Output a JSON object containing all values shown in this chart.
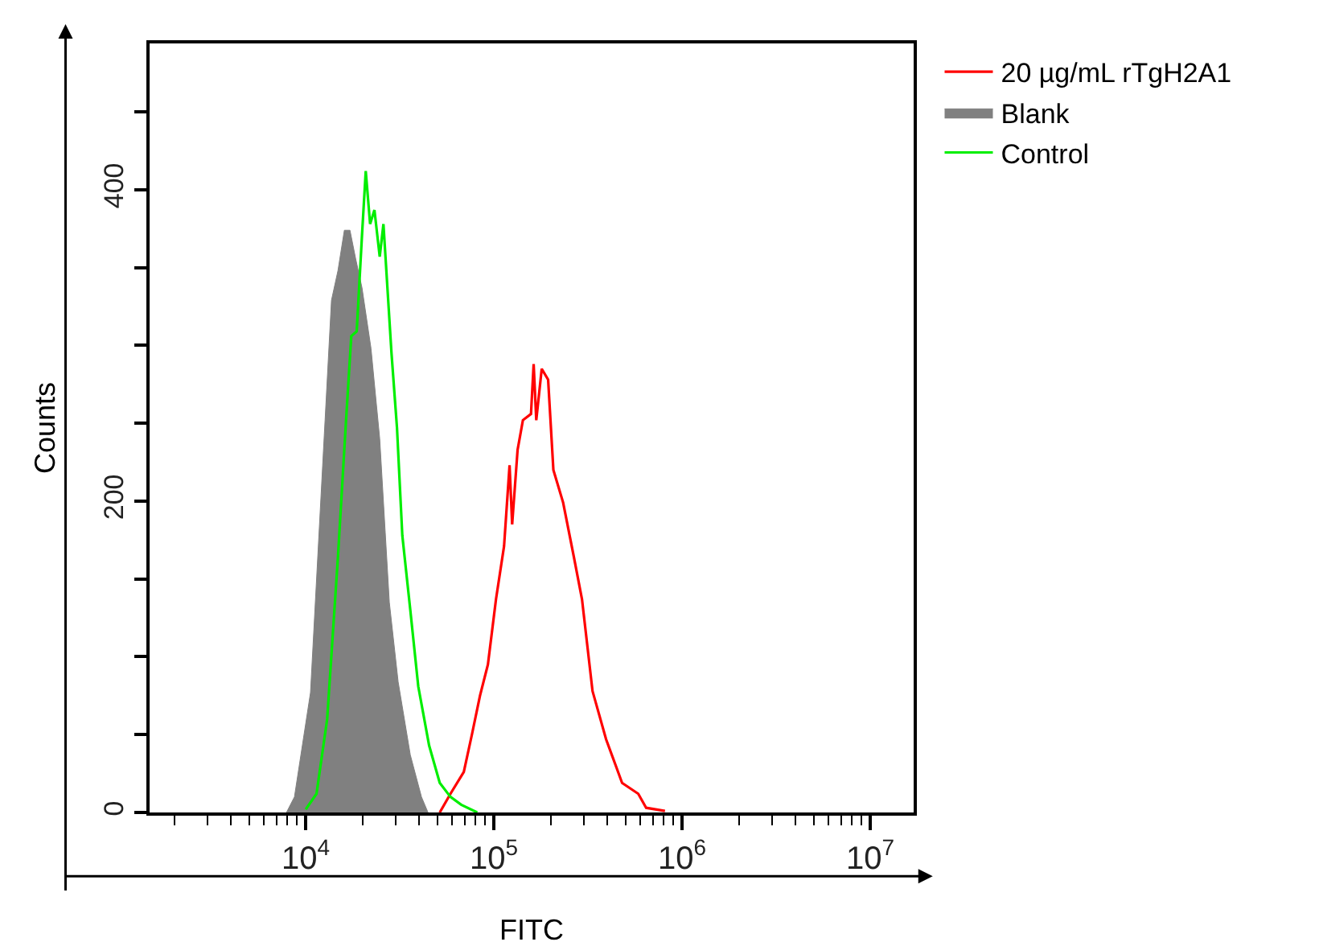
{
  "chart_data": {
    "type": "line",
    "xlabel": "FITC",
    "ylabel": "Counts",
    "log": "x",
    "legend": "top right",
    "marker": "none",
    "xlim": [
      1480,
      17000000
    ],
    "ylim": [
      0,
      494
    ],
    "xticks": [
      {
        "value": 2000,
        "label": null
      },
      {
        "value": 3000,
        "label": null
      },
      {
        "value": 4000,
        "label": null
      },
      {
        "value": 5000,
        "label": null
      },
      {
        "value": 6000,
        "label": null
      },
      {
        "value": 7000,
        "label": null
      },
      {
        "value": 8000,
        "label": null
      },
      {
        "value": 9000,
        "label": null
      },
      {
        "value": 10000,
        "label": "10$^{4}$"
      },
      {
        "value": 20000,
        "label": null
      },
      {
        "value": 30000,
        "label": null
      },
      {
        "value": 40000,
        "label": null
      },
      {
        "value": 50000,
        "label": null
      },
      {
        "value": 60000,
        "label": null
      },
      {
        "value": 70000,
        "label": null
      },
      {
        "value": 80000,
        "label": null
      },
      {
        "value": 90000,
        "label": null
      },
      {
        "value": 100000,
        "label": "10$^{5}$"
      },
      {
        "value": 200000,
        "label": null
      },
      {
        "value": 300000,
        "label": null
      },
      {
        "value": 400000,
        "label": null
      },
      {
        "value": 500000,
        "label": null
      },
      {
        "value": 600000,
        "label": null
      },
      {
        "value": 700000,
        "label": null
      },
      {
        "value": 800000,
        "label": null
      },
      {
        "value": 900000,
        "label": null
      },
      {
        "value": 1000000,
        "label": "10$^{6}$"
      },
      {
        "value": 2000000,
        "label": null
      },
      {
        "value": 3000000,
        "label": null
      },
      {
        "value": 4000000,
        "label": null
      },
      {
        "value": 5000000,
        "label": null
      },
      {
        "value": 6000000,
        "label": null
      },
      {
        "value": 7000000,
        "label": null
      },
      {
        "value": 8000000,
        "label": null
      },
      {
        "value": 9000000,
        "label": null
      },
      {
        "value": 10000000,
        "label": "10$^{7}$"
      }
    ],
    "yticks": [
      0,
      {
        "value": 50,
        "label": null
      },
      {
        "value": 100,
        "label": null
      },
      {
        "value": 150,
        "label": null
      },
      200,
      {
        "value": 250,
        "label": null
      },
      {
        "value": 300,
        "label": null
      },
      {
        "value": 350,
        "label": null
      },
      400,
      {
        "value": 450,
        "label": null
      }
    ],
    "series": [
      {
        "name": "20 µg/mL rTgH2A1",
        "color": "#ff0000",
        "x": [
          51550,
          58760,
          69180,
          76380,
          84330,
          92900,
          102600,
          113200,
          121100,
          125000,
          133600,
          142600,
          157400,
          162600,
          167900,
          179500,
          194100,
          207000,
          233300,
          266100,
          293800,
          334200,
          394500,
          479800,
          584800,
          644200,
          810900
        ],
        "values": [
          0,
          12,
          26,
          50,
          75,
          95,
          137,
          171,
          223,
          185,
          233,
          252,
          256,
          288,
          252,
          285,
          278,
          220,
          199,
          164,
          137,
          78,
          47,
          19,
          12,
          3,
          1
        ]
      },
      {
        "name": "Blank",
        "type": "area",
        "color": "#808080",
        "x": [
          7900,
          8710,
          10600,
          12670,
          13700,
          14830,
          16040,
          17180,
          18400,
          19910,
          22230,
          24730,
          27810,
          30980,
          35950,
          41220,
          44650
        ],
        "values": [
          0,
          10,
          77,
          252,
          329,
          348,
          374,
          374,
          356,
          337,
          298,
          240,
          135,
          84,
          37,
          10,
          0
        ]
      },
      {
        "name": "Control",
        "color": "#00ee00",
        "x": [
          10000,
          11410,
          13000,
          14830,
          16360,
          17460,
          18660,
          19910,
          20840,
          21980,
          23180,
          24730,
          25880,
          28560,
          30550,
          32600,
          35950,
          39630,
          45260,
          51550,
          58760,
          67010,
          81580
        ],
        "values": [
          2,
          12,
          60,
          164,
          251,
          306,
          309,
          371,
          412,
          378,
          387,
          357,
          378,
          295,
          247,
          178,
          130,
          81,
          43,
          19,
          10,
          5,
          0
        ]
      }
    ]
  }
}
